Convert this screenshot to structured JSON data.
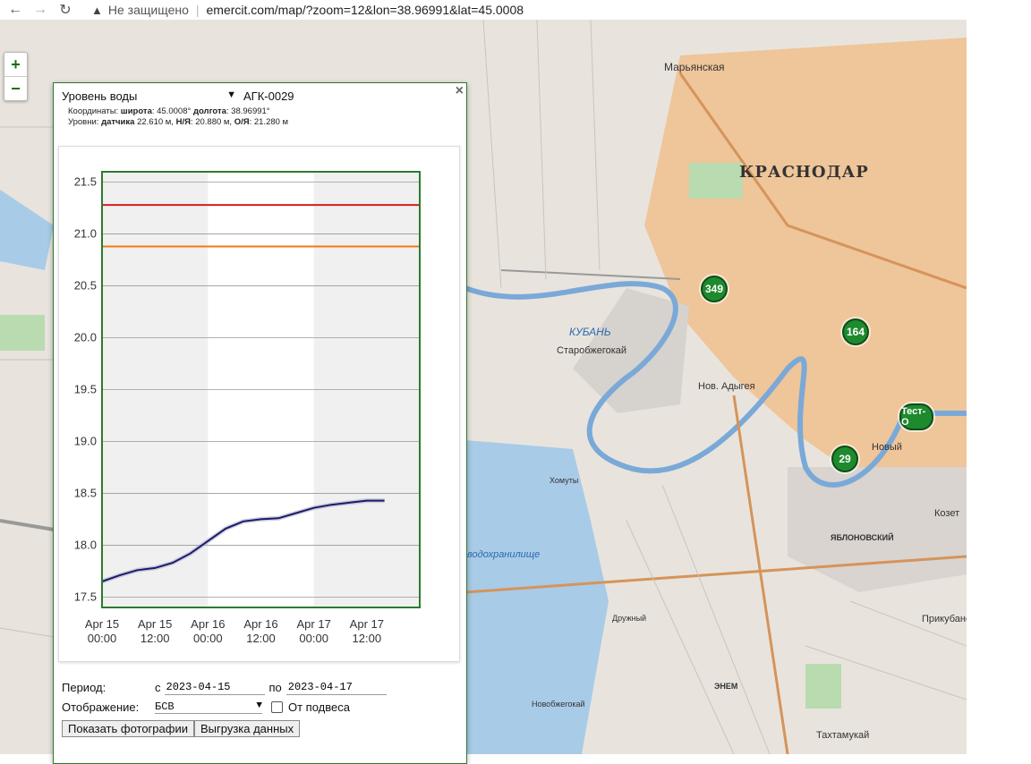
{
  "browser": {
    "security_label": "Не защищено",
    "url": "emercit.com/map/?zoom=12&lon=38.96991&lat=45.0008"
  },
  "map": {
    "zoom_in": "+",
    "zoom_out": "−",
    "labels": {
      "krasnodar": "КРАСНОДАР",
      "maryanskaya": "Марьянская",
      "starobzhegokai": "Старобжегокай",
      "novadygeya": "Нов. Адыгея",
      "kuban": "КУБАНЬ",
      "novy": "Новый",
      "kozet": "Козет",
      "prikubansky": "Прикубанс",
      "takhtamukay": "Тахтамукай",
      "yablonovsky": "ЯБЛОНОВСКИЙ",
      "reservoir": "водохранилище",
      "khomuty": "Хомуты",
      "druzhny": "Дружный",
      "enem": "ЭНЕМ",
      "novobzhegokai": "Новобжегокай"
    },
    "markers": [
      {
        "label": "349"
      },
      {
        "label": "164"
      },
      {
        "label": "Тест-О"
      },
      {
        "label": "29"
      }
    ]
  },
  "popup": {
    "close": "×",
    "type_select": "Уровень воды",
    "station_id": "АГК-0029",
    "coords_prefix": "Координаты:",
    "lat_label": "широта",
    "lat_value": ": 45.0008°",
    "lon_label": "долгота",
    "lon_value": ": 38.96991°",
    "levels_prefix": "Уровни:",
    "sensor_label": "датчика",
    "sensor_value": "22.610 м,",
    "ny_label": "Н/Я",
    "ny_value": ": 20.880 м,",
    "oya_label": "О/Я",
    "oya_value": ": 21.280 м"
  },
  "chart_data": {
    "type": "line",
    "ylim": [
      17.4,
      21.6
    ],
    "yticks": [
      "21.5",
      "21.0",
      "20.5",
      "20.0",
      "19.5",
      "19.0",
      "18.5",
      "18.0",
      "17.5"
    ],
    "xticks": [
      {
        "date": "Apr 15",
        "time": "00:00"
      },
      {
        "date": "Apr 15",
        "time": "12:00"
      },
      {
        "date": "Apr 16",
        "time": "00:00"
      },
      {
        "date": "Apr 16",
        "time": "12:00"
      },
      {
        "date": "Apr 17",
        "time": "00:00"
      },
      {
        "date": "Apr 17",
        "time": "12:00"
      }
    ],
    "thresholds": [
      {
        "name": "О/Я",
        "value": 21.28,
        "color": "#d21f1f"
      },
      {
        "name": "Н/Я",
        "value": 20.88,
        "color": "#f07a14"
      }
    ],
    "series": [
      {
        "color": "#1a1a6e",
        "x_hours": [
          0,
          4,
          8,
          12,
          16,
          20,
          24,
          28,
          32,
          36,
          40,
          44,
          48,
          52,
          56,
          60,
          64
        ],
        "values": [
          17.65,
          17.71,
          17.76,
          17.78,
          17.83,
          17.92,
          18.04,
          18.16,
          18.23,
          18.25,
          18.26,
          18.31,
          18.36,
          18.39,
          18.41,
          18.43,
          18.43
        ]
      }
    ]
  },
  "form": {
    "period_label": "Период:",
    "from_label": "с",
    "from_value": "2023-04-15",
    "to_label": "по",
    "to_value": "2023-04-17",
    "display_label": "Отображение:",
    "display_value": "БСВ",
    "hang_label": "От подвеса",
    "photos_button": "Показать фотографии",
    "export_button": "Выгрузка данных"
  }
}
